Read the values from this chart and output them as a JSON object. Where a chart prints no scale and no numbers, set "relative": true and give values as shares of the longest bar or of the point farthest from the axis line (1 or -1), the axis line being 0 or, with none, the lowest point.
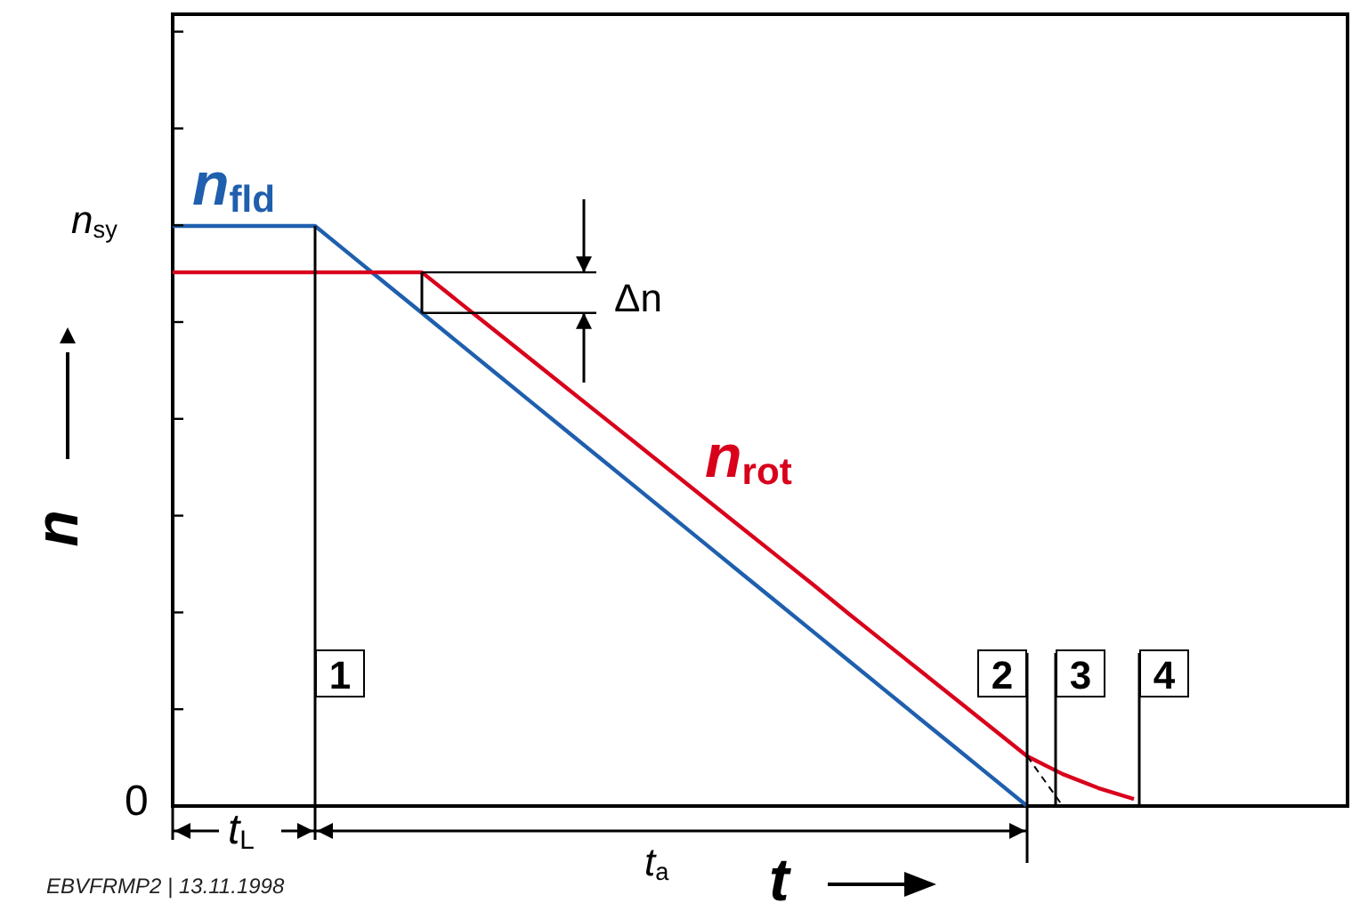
{
  "chart_data": {
    "type": "line",
    "xlabel": "t",
    "ylabel": "n",
    "relative": true,
    "categories": [
      null,
      null,
      null,
      null,
      null,
      null,
      null,
      null,
      null,
      null,
      null,
      null,
      null,
      null,
      null,
      null,
      null,
      null,
      null,
      null,
      null,
      null,
      null,
      null,
      null,
      null,
      null,
      null,
      null,
      null,
      null,
      null,
      null,
      null
    ],
    "series": [
      {
        "name": "n$_{fld}$",
        "color": "#1f5fae",
        "values": [
          1,
          1,
          1,
          1,
          1,
          0.95,
          0.9,
          0.85,
          0.8,
          0.75,
          0.7,
          0.65,
          0.6,
          0.55,
          0.5,
          0.45,
          0.4,
          0.35,
          0.3,
          0.25,
          0.2,
          0.15,
          0.1,
          0.05,
          0,
          null,
          null,
          null,
          null,
          null,
          null,
          null,
          null,
          null
        ]
      },
      {
        "name": "n$_{rot}$",
        "color": "#d9001b",
        "values": [
          0.92,
          0.92,
          0.92,
          0.92,
          0.92,
          0.92,
          0.92,
          0.92,
          0.871,
          0.822,
          0.773,
          0.724,
          0.675,
          0.626,
          0.577,
          0.528,
          0.479,
          0.43,
          0.381,
          0.331,
          0.282,
          0.233,
          0.184,
          0.135,
          0.086,
          0.055,
          0.031,
          0.012,
          null,
          null,
          null,
          null,
          null,
          null
        ]
      },
      {
        "color": "#000000",
        "line_style": "dashed",
        "values": [
          null,
          null,
          null,
          null,
          null,
          null,
          null,
          null,
          null,
          null,
          null,
          null,
          null,
          null,
          null,
          null,
          null,
          null,
          null,
          null,
          null,
          null,
          null,
          null,
          0.086,
          0,
          null,
          null,
          null,
          null,
          null,
          null,
          null,
          null
        ]
      }
    ],
    "marker": "none",
    "annotations": [
      "Δn",
      "1",
      "2",
      "3",
      "4",
      "t$_{L}$",
      "t$_{a}$",
      "EBVFRMP2 | 13.11.1998",
      "0",
      "n$_{sy}$"
    ]
  }
}
